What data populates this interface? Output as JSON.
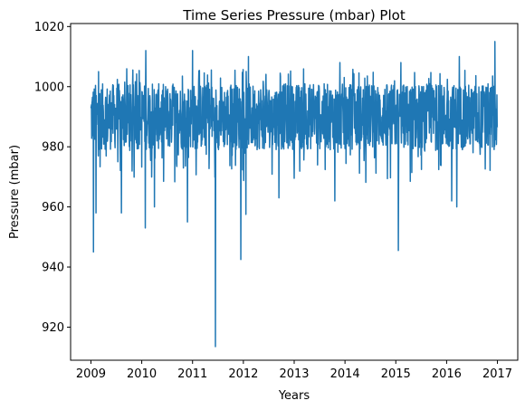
{
  "chart_data": {
    "type": "line",
    "title": "Time Series Pressure (mbar) Plot",
    "xlabel": "Years",
    "ylabel": "Pressure (mbar)",
    "xlim": [
      2008.6,
      2017.4
    ],
    "ylim": [
      909,
      1021
    ],
    "x_ticks": [
      2009,
      2010,
      2011,
      2012,
      2013,
      2014,
      2015,
      2016,
      2017
    ],
    "y_ticks": [
      920,
      940,
      960,
      980,
      1000,
      1020
    ],
    "grid": false,
    "legend": "none",
    "color": "#1f77b4",
    "series": [
      {
        "baseline": 990,
        "x_start": 2009.0,
        "x_end": 2017.0,
        "points_per_year": 200,
        "typical_range": [
          980,
          1000
        ],
        "extremes": [
          {
            "x": 2009.05,
            "y": 945
          },
          {
            "x": 2009.1,
            "y": 958
          },
          {
            "x": 2009.15,
            "y": 1005
          },
          {
            "x": 2009.6,
            "y": 958
          },
          {
            "x": 2010.07,
            "y": 953
          },
          {
            "x": 2010.08,
            "y": 1012
          },
          {
            "x": 2010.25,
            "y": 960
          },
          {
            "x": 2010.9,
            "y": 955
          },
          {
            "x": 2011.0,
            "y": 1012
          },
          {
            "x": 2011.45,
            "y": 913.5
          },
          {
            "x": 2011.95,
            "y": 942.5
          },
          {
            "x": 2012.05,
            "y": 957.5
          },
          {
            "x": 2012.1,
            "y": 1010
          },
          {
            "x": 2012.7,
            "y": 963
          },
          {
            "x": 2013.8,
            "y": 962
          },
          {
            "x": 2013.9,
            "y": 1008
          },
          {
            "x": 2015.05,
            "y": 945.5
          },
          {
            "x": 2015.1,
            "y": 1008
          },
          {
            "x": 2016.1,
            "y": 962
          },
          {
            "x": 2016.2,
            "y": 960
          },
          {
            "x": 2016.25,
            "y": 1010
          },
          {
            "x": 2016.95,
            "y": 1015
          }
        ]
      }
    ]
  }
}
